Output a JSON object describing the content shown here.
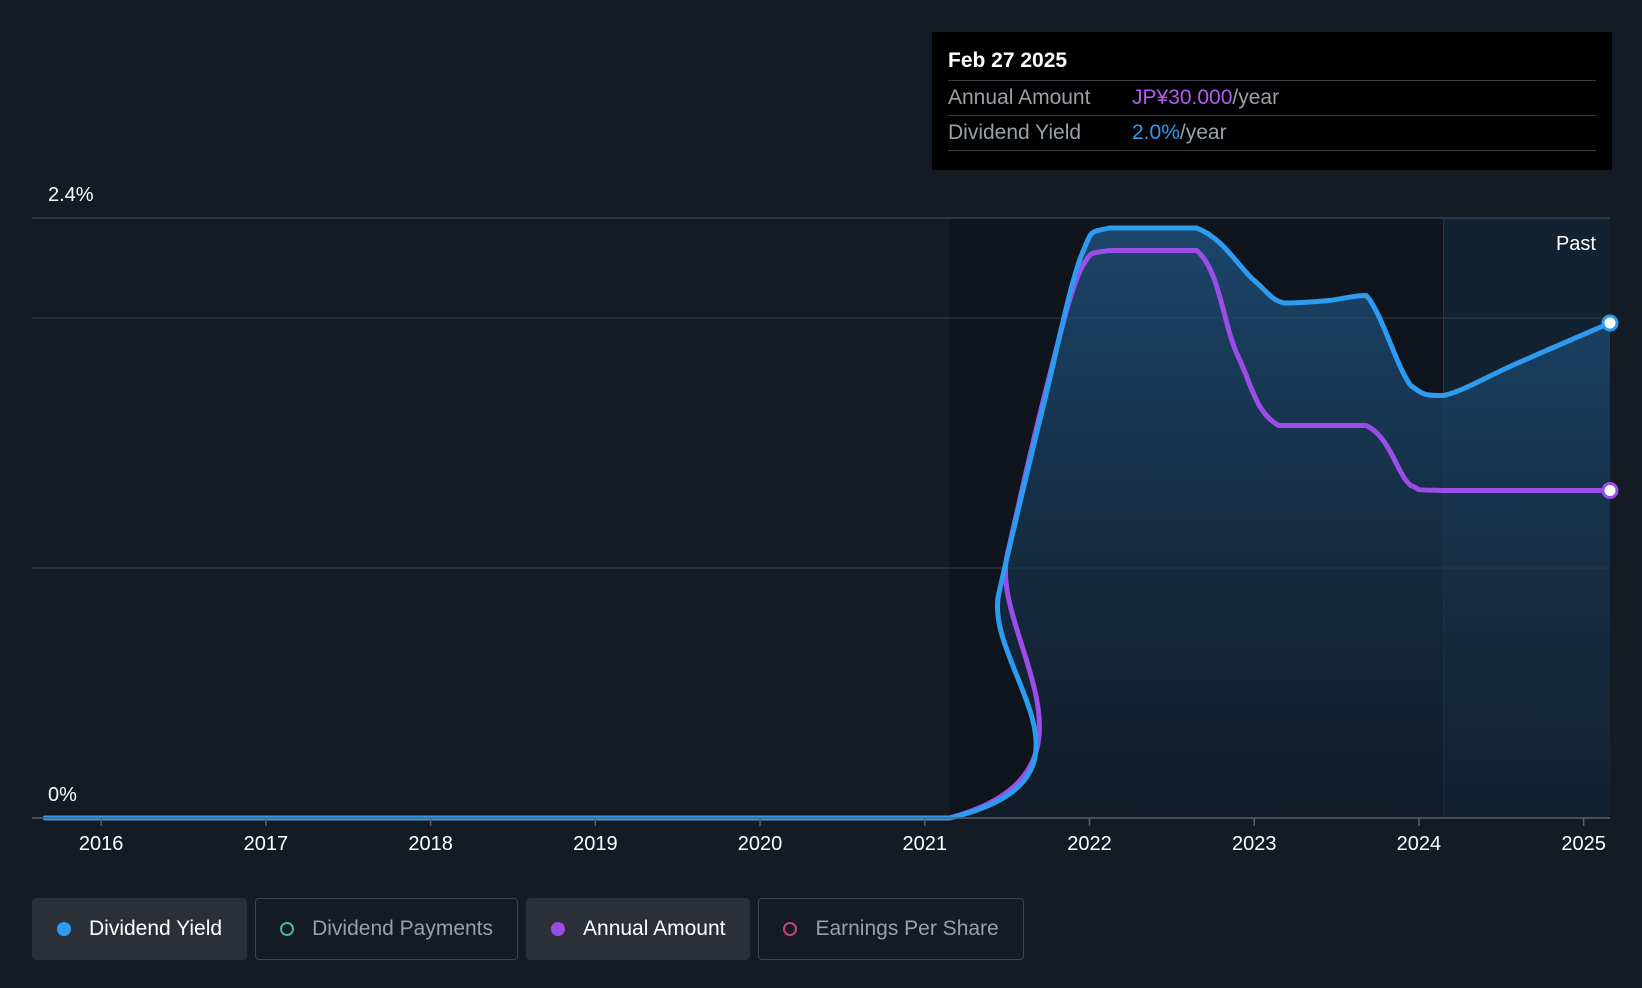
{
  "colors": {
    "background": "#151b24",
    "yield": "#2d9bf0",
    "amount": "#9b4de8",
    "payments": "#45b5a8",
    "eps": "#c2467a",
    "grid": "#3a4049"
  },
  "tooltip": {
    "date": "Feb 27 2025",
    "rows": [
      {
        "key": "Annual Amount",
        "value": "JP¥30.000",
        "unit": "/year"
      },
      {
        "key": "Dividend Yield",
        "value": "2.0%",
        "unit": "/year"
      }
    ]
  },
  "chart_data": {
    "type": "line",
    "title": "",
    "y_unit": "%",
    "ylim": [
      0,
      2.4
    ],
    "y_tick_labels": [
      "2.4%",
      "0%"
    ],
    "x_ticks": [
      2016,
      2017,
      2018,
      2019,
      2020,
      2021,
      2022,
      2023,
      2024,
      2025
    ],
    "x_tick_labels": [
      "2016",
      "2017",
      "2018",
      "2019",
      "2020",
      "2021",
      "2022",
      "2023",
      "2024",
      "2025"
    ],
    "xlim": [
      2015.58,
      2025.16
    ],
    "gridlines": [
      2.4,
      2.0,
      1.0
    ],
    "past_start": 2024.15,
    "past_label": "Past",
    "series": [
      {
        "name": "Dividend Yield",
        "points": [
          [
            2015.66,
            0
          ],
          [
            2021.15,
            0
          ],
          [
            2021.45,
            0.9
          ],
          [
            2021.72,
            1.65
          ],
          [
            2021.95,
            2.25
          ],
          [
            2022.12,
            2.36
          ],
          [
            2022.65,
            2.36
          ],
          [
            2023.0,
            2.15
          ],
          [
            2023.18,
            2.06
          ],
          [
            2023.45,
            2.07
          ],
          [
            2023.68,
            2.09
          ],
          [
            2023.95,
            1.73
          ],
          [
            2024.15,
            1.69
          ],
          [
            2024.6,
            1.82
          ],
          [
            2025.16,
            1.98
          ]
        ]
      },
      {
        "name": "Annual Amount",
        "unit": "JP¥",
        "points": [
          [
            2015.66,
            0
          ],
          [
            2021.15,
            0
          ],
          [
            2021.5,
            1.05
          ],
          [
            2021.75,
            1.75
          ],
          [
            2021.95,
            2.2
          ],
          [
            2022.12,
            2.27
          ],
          [
            2022.65,
            2.27
          ],
          [
            2022.9,
            1.85
          ],
          [
            2023.15,
            1.57
          ],
          [
            2023.68,
            1.57
          ],
          [
            2023.95,
            1.33
          ],
          [
            2024.15,
            1.31
          ],
          [
            2025.16,
            1.31
          ]
        ]
      }
    ]
  },
  "legend": [
    {
      "label": "Dividend Yield",
      "active": true,
      "color": "#2d9bf0",
      "filled": true
    },
    {
      "label": "Dividend Payments",
      "active": false,
      "color": "#45b5a8",
      "filled": false
    },
    {
      "label": "Annual Amount",
      "active": true,
      "color": "#9b4de8",
      "filled": true
    },
    {
      "label": "Earnings Per Share",
      "active": false,
      "color": "#c2467a",
      "filled": false
    }
  ]
}
